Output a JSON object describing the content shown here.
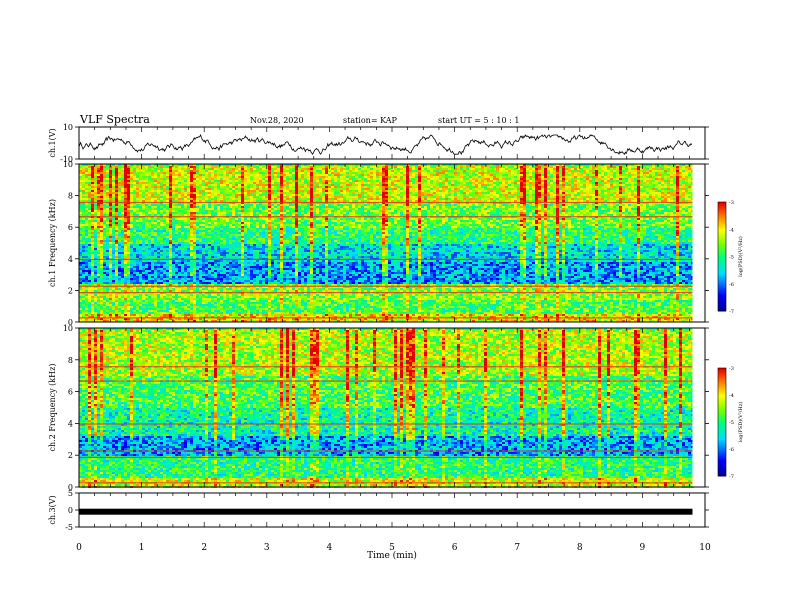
{
  "header": {
    "title": "VLF Spectra",
    "date": "Nov.28, 2020",
    "station": "station= KAP",
    "start": "start  UT =   5  : 10 : 1"
  },
  "chart_data": [
    {
      "type": "line",
      "ylabel": "ch.1(V)",
      "ylim": [
        -10,
        10
      ],
      "yticks": [
        "10",
        "-10"
      ],
      "description_of_values": "noisy waveform around 0 V, amplitude roughly -7 to +5 V"
    },
    {
      "type": "heatmap",
      "ylabel": "ch.1 Frequency (kHz)",
      "ylim": [
        0,
        10
      ],
      "yticks": [
        "0",
        "2",
        "4",
        "6",
        "8",
        "10"
      ],
      "colorbar": {
        "label": "log(PSD)(V²/Hz)",
        "range": [
          -7,
          -3
        ],
        "ticks": [
          "-3",
          "-4",
          "-5",
          "-6",
          "-7"
        ]
      },
      "bands": [
        {
          "from": 0.0,
          "to": 0.6,
          "level": -4.0
        },
        {
          "from": 0.6,
          "to": 1.5,
          "level": -4.8
        },
        {
          "from": 1.5,
          "to": 2.5,
          "level": -4.5
        },
        {
          "from": 2.5,
          "to": 3.8,
          "level": -5.8
        },
        {
          "from": 3.8,
          "to": 5.0,
          "level": -5.5
        },
        {
          "from": 5.0,
          "to": 6.0,
          "level": -5.0
        },
        {
          "from": 6.0,
          "to": 7.5,
          "level": -4.6
        },
        {
          "from": 7.5,
          "to": 10.0,
          "level": -4.2
        }
      ]
    },
    {
      "type": "heatmap",
      "ylabel": "ch.2 Frequency (kHz)",
      "ylim": [
        0,
        10
      ],
      "yticks": [
        "0",
        "2",
        "4",
        "6",
        "8",
        "10"
      ],
      "colorbar": {
        "label": "log(PSD)(V²/Hz)",
        "range": [
          -7,
          -3
        ],
        "ticks": [
          "-3",
          "-4",
          "-5",
          "-6",
          "-7"
        ]
      },
      "bands": [
        {
          "from": 0.0,
          "to": 0.6,
          "level": -4.2
        },
        {
          "from": 0.6,
          "to": 2.0,
          "level": -5.0
        },
        {
          "from": 2.0,
          "to": 3.3,
          "level": -5.8
        },
        {
          "from": 3.3,
          "to": 5.0,
          "level": -5.2
        },
        {
          "from": 5.0,
          "to": 7.0,
          "level": -4.8
        },
        {
          "from": 7.0,
          "to": 10.0,
          "level": -4.3
        }
      ]
    },
    {
      "type": "line",
      "ylabel": "ch.3(V)",
      "ylim": [
        -5,
        5
      ],
      "yticks": [
        "5",
        "0",
        "-5"
      ],
      "description_of_values": "thick flat trace near -0.5 V across full time range"
    }
  ],
  "xaxis": {
    "label": "Time (min)",
    "xlim": [
      0,
      10
    ],
    "ticks": [
      "0",
      "1",
      "2",
      "3",
      "4",
      "5",
      "6",
      "7",
      "8",
      "9",
      "10"
    ],
    "data_end": 9.8
  },
  "colorbar_ticks": [
    "-3",
    "-4",
    "-5",
    "-6",
    "-7"
  ],
  "colorbar_label": "log(PSD)(V²/Hz)"
}
